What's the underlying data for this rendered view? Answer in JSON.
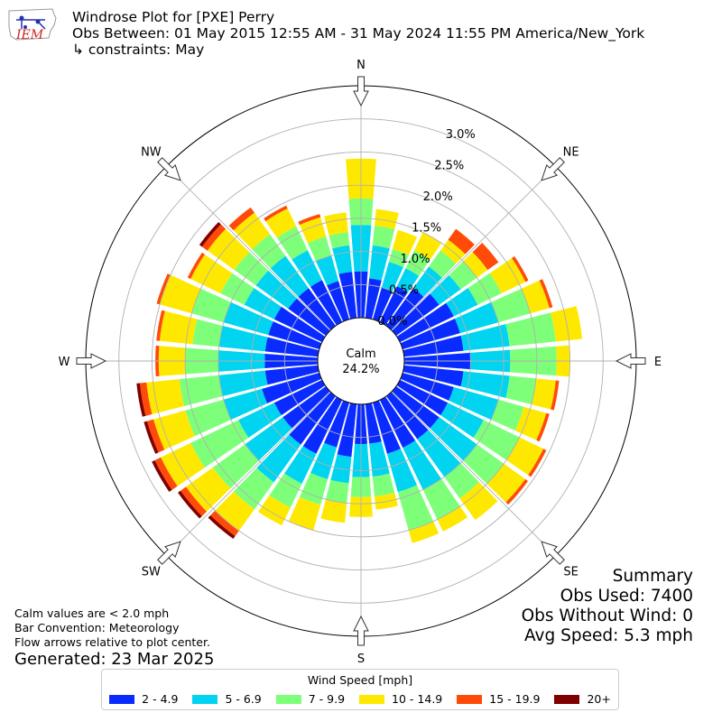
{
  "title": {
    "line1": "Windrose Plot for [PXE] Perry",
    "line2": "Obs Between: 01 May 2015 12:55 AM - 31 May 2024 11:55 PM America/New_York",
    "line3": "↳ constraints: May"
  },
  "logo": {
    "icon": "iem-logo-icon",
    "text": "IEM",
    "color": "#cc2222"
  },
  "notes": {
    "calm": "Calm values are < 2.0 mph",
    "convention": "Bar Convention: Meteorology",
    "flow": "Flow arrows relative to plot center.",
    "generated": "Generated: 23 Mar 2025"
  },
  "summary": {
    "heading": "Summary",
    "obs_used": "Obs Used: 7400",
    "obs_without_wind": "Obs Without Wind: 0",
    "avg_speed": "Avg Speed: 5.3 mph"
  },
  "chart_data": {
    "type": "windrose",
    "calm_label": "Calm",
    "calm_value": "24.2%",
    "cardinals": [
      {
        "label": "N",
        "deg": 0
      },
      {
        "label": "NE",
        "deg": 45
      },
      {
        "label": "E",
        "deg": 90
      },
      {
        "label": "SE",
        "deg": 135
      },
      {
        "label": "S",
        "deg": 180
      },
      {
        "label": "SW",
        "deg": 225
      },
      {
        "label": "W",
        "deg": 270
      },
      {
        "label": "NW",
        "deg": 315
      }
    ],
    "radial_ticks": [
      "0.0%",
      "0.5%",
      "1.0%",
      "1.5%",
      "2.0%",
      "2.5%",
      "3.0%"
    ],
    "radial_tick_values": [
      0,
      0.5,
      1.0,
      1.5,
      2.0,
      2.5,
      3.0
    ],
    "rmax": 3.5,
    "grid": true,
    "legend_title": "Wind Speed [mph]",
    "legend_placement": "bottom",
    "bins": [
      {
        "label": "2 - 4.9",
        "color": "#0a2bff"
      },
      {
        "label": "5 - 6.9",
        "color": "#00d4f0"
      },
      {
        "label": "7 - 9.9",
        "color": "#7dff7a"
      },
      {
        "label": "10 - 14.9",
        "color": "#ffe800"
      },
      {
        "label": "15 - 19.9",
        "color": "#ff4a0a"
      },
      {
        "label": "20+",
        "color": "#800000"
      }
    ],
    "directions_deg": [
      0,
      10,
      20,
      30,
      40,
      50,
      60,
      70,
      80,
      90,
      100,
      110,
      120,
      130,
      140,
      150,
      160,
      170,
      180,
      190,
      200,
      210,
      220,
      230,
      240,
      250,
      260,
      270,
      280,
      290,
      300,
      310,
      320,
      330,
      340,
      350
    ],
    "cumulative": [
      [
        0.7,
        1.4,
        1.8,
        2.4,
        2.4,
        2.4
      ],
      [
        0.6,
        1.1,
        1.4,
        1.65,
        1.65,
        1.65
      ],
      [
        0.5,
        0.9,
        1.1,
        1.4,
        1.4,
        1.4
      ],
      [
        0.6,
        0.9,
        1.2,
        1.5,
        1.5,
        1.5
      ],
      [
        0.7,
        1.1,
        1.4,
        1.6,
        1.8,
        1.8
      ],
      [
        0.8,
        1.2,
        1.5,
        1.7,
        1.9,
        1.9
      ],
      [
        0.9,
        1.3,
        1.7,
        2.1,
        2.15,
        2.15
      ],
      [
        0.9,
        1.5,
        2.0,
        2.3,
        2.35,
        2.35
      ],
      [
        0.9,
        1.6,
        2.3,
        2.7,
        2.7,
        2.7
      ],
      [
        1.0,
        1.6,
        2.3,
        2.5,
        2.5,
        2.5
      ],
      [
        0.9,
        1.6,
        2.0,
        2.3,
        2.35,
        2.35
      ],
      [
        0.8,
        1.5,
        1.9,
        2.25,
        2.3,
        2.3
      ],
      [
        0.8,
        1.4,
        2.0,
        2.4,
        2.45,
        2.45
      ],
      [
        0.8,
        1.5,
        2.0,
        2.4,
        2.45,
        2.45
      ],
      [
        0.8,
        1.5,
        1.9,
        2.3,
        2.3,
        2.3
      ],
      [
        0.8,
        1.5,
        2.0,
        2.2,
        2.2,
        2.2
      ],
      [
        0.8,
        1.4,
        2.0,
        2.2,
        2.2,
        2.2
      ],
      [
        0.6,
        1.1,
        1.4,
        1.6,
        1.6,
        1.6
      ],
      [
        0.6,
        1.1,
        1.4,
        1.7,
        1.7,
        1.7
      ],
      [
        0.8,
        1.2,
        1.5,
        1.8,
        1.8,
        1.8
      ],
      [
        0.7,
        1.2,
        1.6,
        2.0,
        2.0,
        2.0
      ],
      [
        0.9,
        1.4,
        1.8,
        2.1,
        2.1,
        2.1
      ],
      [
        0.9,
        1.6,
        2.1,
        2.5,
        2.6,
        2.65
      ],
      [
        0.8,
        1.5,
        2.1,
        2.6,
        2.7,
        2.75
      ],
      [
        0.8,
        1.4,
        2.2,
        2.7,
        2.8,
        2.85
      ],
      [
        0.9,
        1.5,
        2.1,
        2.6,
        2.7,
        2.75
      ],
      [
        0.8,
        1.5,
        2.1,
        2.6,
        2.7,
        2.75
      ],
      [
        0.8,
        1.5,
        2.0,
        2.4,
        2.45,
        2.45
      ],
      [
        0.8,
        1.5,
        1.9,
        2.4,
        2.45,
        2.45
      ],
      [
        0.8,
        1.5,
        2.0,
        2.5,
        2.55,
        2.55
      ],
      [
        0.8,
        1.3,
        1.7,
        2.2,
        2.25,
        2.25
      ],
      [
        0.7,
        1.3,
        1.7,
        2.2,
        2.3,
        2.35
      ],
      [
        0.7,
        1.3,
        1.7,
        2.1,
        2.2,
        2.2
      ],
      [
        0.7,
        1.2,
        1.6,
        1.9,
        1.95,
        1.95
      ],
      [
        0.6,
        1.0,
        1.3,
        1.6,
        1.65,
        1.65
      ],
      [
        0.7,
        1.1,
        1.3,
        1.6,
        1.6,
        1.6
      ]
    ]
  }
}
